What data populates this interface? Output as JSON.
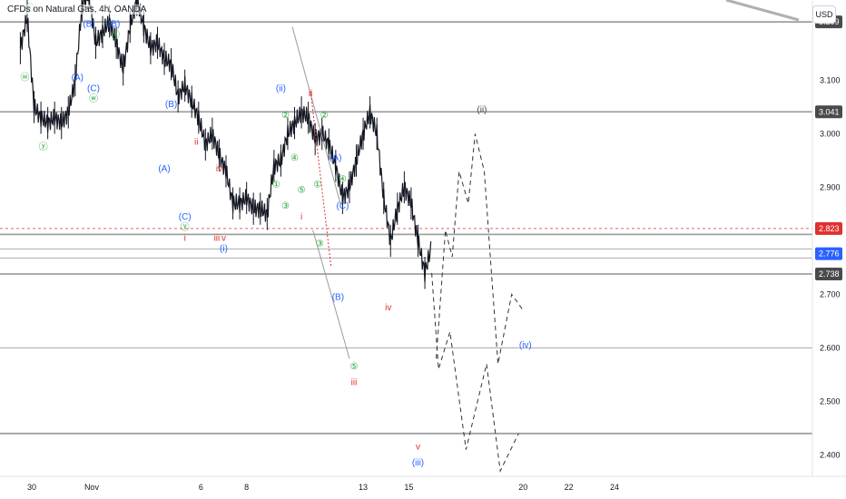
{
  "header": {
    "title": "CFDs on Natural Gas, 4h, OANDA",
    "currency": "USD"
  },
  "colors": {
    "bull": "#131722",
    "bear": "#131722",
    "grid": "#e6e6e6",
    "hline": "#a0a0a0",
    "red": "#e03030",
    "blue": "#2962ff",
    "green": "#22a02a",
    "dark": "#4a4a4a",
    "axis_bg": "#ffffff"
  },
  "chart_data": {
    "type": "candlestick",
    "ylim": [
      2.36,
      3.25
    ],
    "y_ticks": [
      2.4,
      2.5,
      2.6,
      2.7,
      2.9,
      3.0,
      3.1
    ],
    "x_ticks": [
      {
        "label": "30",
        "x": 30.5
      },
      {
        "label": "Nov",
        "x": 33
      },
      {
        "label": "6",
        "x": 38
      },
      {
        "label": "8",
        "x": 40
      },
      {
        "label": "13",
        "x": 45
      },
      {
        "label": "15",
        "x": 47
      },
      {
        "label": "20",
        "x": 52
      },
      {
        "label": "22",
        "x": 54
      },
      {
        "label": "24",
        "x": 56
      }
    ],
    "price_levels": [
      {
        "value": 3.209,
        "label": "3.209",
        "style": "solid",
        "badge": "dark"
      },
      {
        "value": 3.041,
        "label": "3.041",
        "style": "solid",
        "badge": "dark"
      },
      {
        "value": 2.823,
        "label": "2.823",
        "style": "dashed",
        "badge": "red"
      },
      {
        "value": 2.776,
        "label": "2.776",
        "style": "none",
        "badge": "blue"
      },
      {
        "value": 2.738,
        "label": "2.738",
        "style": "solid",
        "badge": "dark"
      },
      {
        "value": 2.812,
        "label": "",
        "style": "solid",
        "badge": "none"
      },
      {
        "value": 2.785,
        "label": "",
        "style": "thin",
        "badge": "none"
      },
      {
        "value": 2.768,
        "label": "",
        "style": "thin",
        "badge": "none"
      },
      {
        "value": 2.6,
        "label": "",
        "style": "thin",
        "badge": "none"
      },
      {
        "value": 2.44,
        "label": "",
        "style": "solid",
        "badge": "none"
      }
    ],
    "price_path": [
      [
        30.0,
        3.16
      ],
      [
        30.3,
        3.22
      ],
      [
        30.6,
        3.05
      ],
      [
        30.9,
        3.03
      ],
      [
        31.2,
        3.02
      ],
      [
        31.5,
        3.03
      ],
      [
        31.8,
        3.02
      ],
      [
        32.1,
        3.04
      ],
      [
        32.4,
        3.1
      ],
      [
        32.7,
        3.24
      ],
      [
        33.0,
        3.26
      ],
      [
        33.3,
        3.17
      ],
      [
        33.6,
        3.19
      ],
      [
        33.9,
        3.21
      ],
      [
        34.2,
        3.17
      ],
      [
        34.5,
        3.12
      ],
      [
        34.8,
        3.2
      ],
      [
        35.1,
        3.25
      ],
      [
        35.4,
        3.2
      ],
      [
        35.7,
        3.16
      ],
      [
        36.0,
        3.17
      ],
      [
        36.3,
        3.14
      ],
      [
        36.6,
        3.13
      ],
      [
        36.9,
        3.07
      ],
      [
        37.2,
        3.09
      ],
      [
        37.5,
        3.06
      ],
      [
        37.8,
        3.03
      ],
      [
        38.1,
        2.98
      ],
      [
        38.4,
        3.0
      ],
      [
        38.7,
        2.96
      ],
      [
        39.0,
        2.93
      ],
      [
        39.3,
        2.87
      ],
      [
        39.6,
        2.87
      ],
      [
        39.9,
        2.88
      ],
      [
        40.2,
        2.86
      ],
      [
        40.5,
        2.86
      ],
      [
        40.8,
        2.85
      ],
      [
        41.1,
        2.94
      ],
      [
        41.4,
        2.95
      ],
      [
        41.7,
        3.0
      ],
      [
        42.0,
        3.02
      ],
      [
        42.3,
        3.04
      ],
      [
        42.6,
        3.03
      ],
      [
        42.9,
        2.99
      ],
      [
        43.2,
        3.0
      ],
      [
        43.5,
        2.98
      ],
      [
        43.8,
        2.94
      ],
      [
        44.1,
        2.88
      ],
      [
        44.4,
        2.9
      ],
      [
        44.7,
        2.95
      ],
      [
        45.0,
        3.0
      ],
      [
        45.3,
        3.04
      ],
      [
        45.6,
        3.0
      ],
      [
        45.9,
        2.88
      ],
      [
        46.2,
        2.8
      ],
      [
        46.5,
        2.86
      ],
      [
        46.8,
        2.9
      ],
      [
        47.1,
        2.87
      ],
      [
        47.4,
        2.8
      ],
      [
        47.7,
        2.74
      ],
      [
        48.0,
        2.79
      ]
    ],
    "projection": [
      [
        48.2,
        2.58
      ],
      [
        48.6,
        2.82
      ],
      [
        48.9,
        2.77
      ],
      [
        49.2,
        2.93
      ],
      [
        49.6,
        2.87
      ],
      [
        49.9,
        3.0
      ],
      [
        50.3,
        2.93
      ],
      [
        50.6,
        2.75
      ],
      [
        50.9,
        2.57
      ],
      [
        51.5,
        2.7
      ],
      [
        52.0,
        2.67
      ]
    ],
    "projection_2": [
      [
        48.0,
        2.74
      ],
      [
        48.3,
        2.56
      ],
      [
        48.8,
        2.63
      ],
      [
        49.5,
        2.41
      ],
      [
        50.4,
        2.57
      ],
      [
        51.0,
        2.37
      ],
      [
        51.8,
        2.44
      ]
    ],
    "wave_labels": [
      {
        "t": "ⓧ",
        "x": 30.4,
        "y": 3.23,
        "c": "green"
      },
      {
        "t": "ⓦ",
        "x": 30.2,
        "y": 3.1,
        "c": "green"
      },
      {
        "t": "ⓨ",
        "x": 31.0,
        "y": 2.97,
        "c": "green"
      },
      {
        "t": "(A)",
        "x": 32.5,
        "y": 3.1,
        "c": "blue"
      },
      {
        "t": "(B)",
        "x": 33.0,
        "y": 3.2,
        "c": "blue"
      },
      {
        "t": "(C)",
        "x": 33.2,
        "y": 3.08,
        "c": "blue"
      },
      {
        "t": "ⓦ",
        "x": 33.2,
        "y": 3.06,
        "c": "green"
      },
      {
        "t": "ⓐ",
        "x": 34.0,
        "y": 3.27,
        "c": "green"
      },
      {
        "t": "(B)",
        "x": 34.1,
        "y": 3.2,
        "c": "blue"
      },
      {
        "t": "ⓑ",
        "x": 34.15,
        "y": 3.18,
        "c": "green"
      },
      {
        "t": "(A)",
        "x": 36.3,
        "y": 2.93,
        "c": "blue"
      },
      {
        "t": "(B)",
        "x": 36.6,
        "y": 3.05,
        "c": "blue"
      },
      {
        "t": "(C)",
        "x": 37.2,
        "y": 2.84,
        "c": "blue"
      },
      {
        "t": "ⓨ",
        "x": 37.2,
        "y": 2.82,
        "c": "green"
      },
      {
        "t": "i",
        "x": 37.2,
        "y": 2.8,
        "c": "red"
      },
      {
        "t": "ii",
        "x": 37.7,
        "y": 2.98,
        "c": "red"
      },
      {
        "t": "iii",
        "x": 38.6,
        "y": 2.8,
        "c": "red"
      },
      {
        "t": "iv",
        "x": 38.7,
        "y": 2.93,
        "c": "red"
      },
      {
        "t": "v",
        "x": 38.9,
        "y": 2.8,
        "c": "red"
      },
      {
        "t": "(i)",
        "x": 38.9,
        "y": 2.78,
        "c": "blue"
      },
      {
        "t": "(ii)",
        "x": 41.4,
        "y": 3.08,
        "c": "blue"
      },
      {
        "t": "②",
        "x": 41.6,
        "y": 3.03,
        "c": "green"
      },
      {
        "t": "①",
        "x": 41.2,
        "y": 2.9,
        "c": "green"
      },
      {
        "t": "③",
        "x": 41.6,
        "y": 2.86,
        "c": "green"
      },
      {
        "t": "④",
        "x": 42.0,
        "y": 2.95,
        "c": "green"
      },
      {
        "t": "⑤",
        "x": 42.3,
        "y": 2.89,
        "c": "green"
      },
      {
        "t": "i",
        "x": 42.3,
        "y": 2.84,
        "c": "red"
      },
      {
        "t": "ii",
        "x": 42.7,
        "y": 3.07,
        "c": "red"
      },
      {
        "t": "②",
        "x": 43.3,
        "y": 3.03,
        "c": "green"
      },
      {
        "t": "①",
        "x": 43.0,
        "y": 2.9,
        "c": "green"
      },
      {
        "t": "③",
        "x": 43.1,
        "y": 2.79,
        "c": "green"
      },
      {
        "t": "(A)",
        "x": 43.8,
        "y": 2.95,
        "c": "blue"
      },
      {
        "t": "④",
        "x": 44.1,
        "y": 2.91,
        "c": "green"
      },
      {
        "t": "(C)",
        "x": 44.1,
        "y": 2.86,
        "c": "blue"
      },
      {
        "t": "(B)",
        "x": 43.9,
        "y": 2.69,
        "c": "blue"
      },
      {
        "t": "⑤",
        "x": 44.6,
        "y": 2.56,
        "c": "green"
      },
      {
        "t": "iii",
        "x": 44.6,
        "y": 2.53,
        "c": "red"
      },
      {
        "t": "iv",
        "x": 46.1,
        "y": 2.67,
        "c": "red"
      },
      {
        "t": "v",
        "x": 47.4,
        "y": 2.41,
        "c": "red"
      },
      {
        "t": "(iii)",
        "x": 47.4,
        "y": 2.38,
        "c": "blue"
      },
      {
        "t": "(ii)",
        "x": 50.2,
        "y": 3.04,
        "c": "dark"
      },
      {
        "t": "(iv)",
        "x": 52.1,
        "y": 2.6,
        "c": "blue"
      }
    ]
  }
}
